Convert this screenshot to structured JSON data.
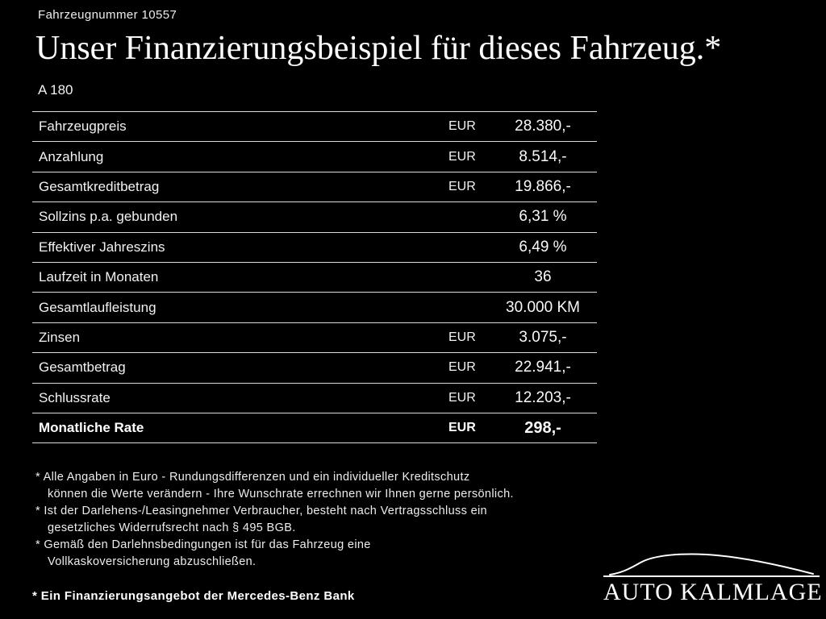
{
  "colors": {
    "background": "#000000",
    "text": "#ffffff",
    "divider": "#dcdcdc"
  },
  "header": {
    "vehicle_number": "Fahrzeugnummer 10557",
    "title": "Unser Finanzierungsbeispiel für dieses Fahrzeug.*",
    "model": "A 180"
  },
  "table": {
    "rows": [
      {
        "label": "Fahrzeugpreis",
        "currency": "EUR",
        "value": "28.380,-",
        "bold": false
      },
      {
        "label": "Anzahlung",
        "currency": "EUR",
        "value": "8.514,-",
        "bold": false
      },
      {
        "label": "Gesamtkreditbetrag",
        "currency": "EUR",
        "value": "19.866,-",
        "bold": false
      },
      {
        "label": "Sollzins p.a. gebunden",
        "currency": "",
        "value": "6,31 %",
        "bold": false
      },
      {
        "label": "Effektiver Jahreszins",
        "currency": "",
        "value": "6,49 %",
        "bold": false
      },
      {
        "label": "Laufzeit in Monaten",
        "currency": "",
        "value": "36",
        "bold": false
      },
      {
        "label": "Gesamtlaufleistung",
        "currency": "",
        "value": "30.000 KM",
        "bold": false
      },
      {
        "label": "Zinsen",
        "currency": "EUR",
        "value": "3.075,-",
        "bold": false
      },
      {
        "label": "Gesamtbetrag",
        "currency": "EUR",
        "value": "22.941,-",
        "bold": false
      },
      {
        "label": "Schlussrate",
        "currency": "EUR",
        "value": "12.203,-",
        "bold": false
      },
      {
        "label": "Monatliche Rate",
        "currency": "EUR",
        "value": "298,-",
        "bold": true
      }
    ]
  },
  "footnotes": [
    {
      "lines": [
        "* Alle Angaben in Euro - Rundungsdifferenzen und ein individueller Kreditschutz",
        "können die Werte verändern - Ihre Wunschrate errechnen wir Ihnen gerne persönlich."
      ]
    },
    {
      "lines": [
        "* Ist der Darlehens-/Leasingnehmer Verbraucher, besteht nach Vertragsschluss ein",
        "gesetzliches Widerrufsrecht nach § 495 BGB."
      ]
    },
    {
      "lines": [
        "* Gemäß den Darlehnsbedingungen ist für das Fahrzeug eine",
        "Vollkaskoversicherung abzuschließen."
      ]
    }
  ],
  "footer": {
    "offer": "* Ein Finanzierungsangebot der Mercedes-Benz Bank",
    "dealer": "AUTO KALMLAGE"
  }
}
